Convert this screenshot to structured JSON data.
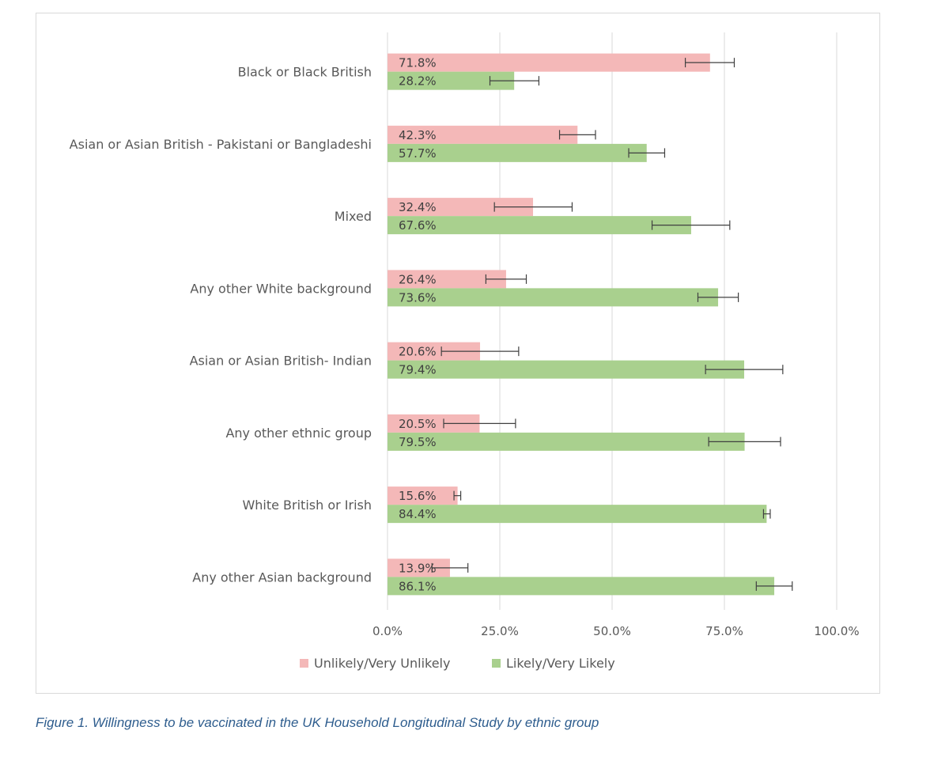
{
  "caption": "Figure 1. Willingness to be vaccinated in the UK Household Longitudinal Study by ethnic group",
  "chart_data": {
    "type": "bar",
    "orientation": "horizontal",
    "categories": [
      "Black or Black British",
      "Asian or Asian British - Pakistani or Bangladeshi",
      "Mixed",
      "Any other White background",
      "Asian or Asian British- Indian",
      "Any other ethnic group",
      "White British or Irish",
      "Any other Asian background"
    ],
    "series": [
      {
        "name": "Unlikely/Very Unlikely",
        "color": "#f4b8b8",
        "values": [
          71.8,
          42.3,
          32.4,
          26.4,
          20.6,
          20.5,
          15.6,
          13.9
        ],
        "labels": [
          "71.8%",
          "42.3%",
          "32.4%",
          "26.4%",
          "20.6%",
          "20.5%",
          "15.6%",
          "13.9%"
        ],
        "error_low": [
          66.3,
          38.3,
          23.8,
          21.9,
          12.0,
          12.5,
          14.8,
          9.9
        ],
        "error_high": [
          77.2,
          46.3,
          41.1,
          30.9,
          29.2,
          28.5,
          16.3,
          17.9
        ]
      },
      {
        "name": "Likely/Very Likely",
        "color": "#a9d08e",
        "values": [
          28.2,
          57.7,
          67.6,
          73.6,
          79.4,
          79.5,
          84.4,
          86.1
        ],
        "labels": [
          "28.2%",
          "57.7%",
          "67.6%",
          "73.6%",
          "79.4%",
          "79.5%",
          "84.4%",
          "86.1%"
        ],
        "error_low": [
          22.8,
          53.7,
          58.9,
          69.1,
          70.8,
          71.5,
          83.7,
          82.1
        ],
        "error_high": [
          33.7,
          61.7,
          76.2,
          78.1,
          88.0,
          87.5,
          85.2,
          90.1
        ]
      }
    ],
    "xlim": [
      0,
      100
    ],
    "ticks": [
      0,
      25,
      50,
      75,
      100
    ],
    "tick_labels": [
      "0.0%",
      "25.0%",
      "50.0%",
      "75.0%",
      "100.0%"
    ],
    "grid": true,
    "legend_position": "bottom",
    "error_bars": true
  }
}
